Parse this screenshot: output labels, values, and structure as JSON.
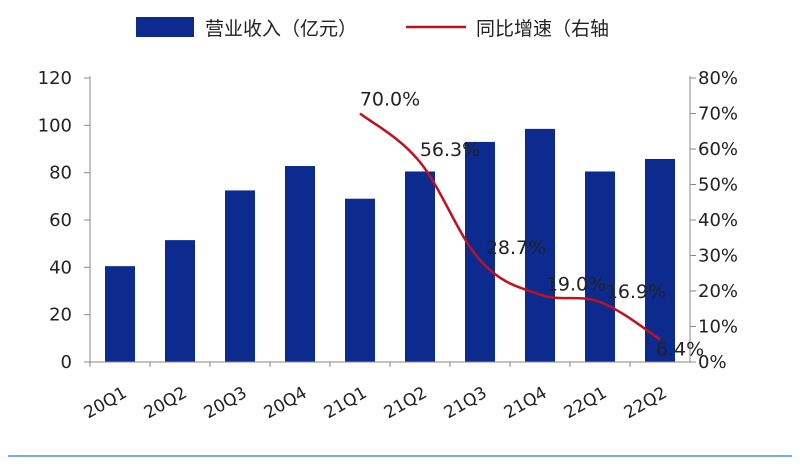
{
  "chart_data": {
    "type": "bar",
    "categories": [
      "20Q1",
      "20Q2",
      "20Q3",
      "20Q4",
      "21Q1",
      "21Q2",
      "21Q3",
      "21Q4",
      "22Q1",
      "22Q2"
    ],
    "series": [
      {
        "name": "营业收入（亿元）",
        "type": "bar",
        "axis": "left",
        "color": "#0d2b8f",
        "values": [
          40.5,
          51.5,
          72.5,
          82.8,
          69,
          80.5,
          93,
          98.5,
          80.5,
          85.8
        ]
      },
      {
        "name": "同比增速（右轴",
        "type": "line",
        "axis": "right",
        "color": "#c0111f",
        "values": [
          null,
          null,
          null,
          null,
          70.0,
          56.3,
          28.7,
          19.0,
          16.9,
          6.4
        ],
        "labels": [
          "",
          "",
          "",
          "",
          "70.0%",
          "56.3%",
          "28.7%",
          "19.0%",
          "16.9%",
          "6.4%"
        ]
      }
    ],
    "y_left": {
      "min": 0,
      "max": 120,
      "ticks": [
        "0",
        "20",
        "40",
        "60",
        "80",
        "100",
        "120"
      ]
    },
    "y_right": {
      "min": 0,
      "max": 80,
      "ticks": [
        "0%",
        "10%",
        "20%",
        "30%",
        "40%",
        "50%",
        "60%",
        "70%",
        "80%"
      ]
    },
    "grid": false,
    "legend_position": "top"
  }
}
